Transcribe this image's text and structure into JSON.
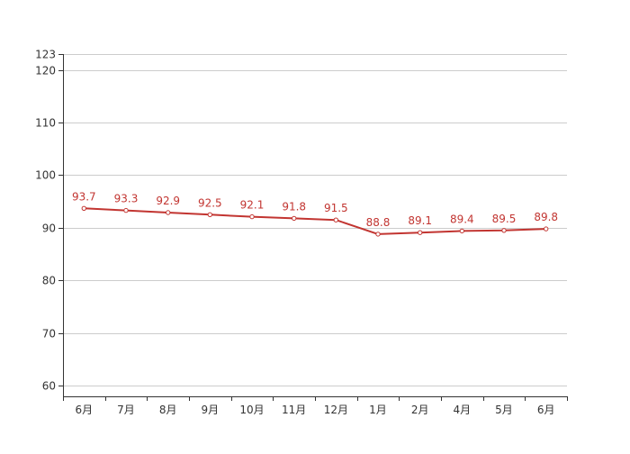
{
  "colors": {
    "series": "#c23531",
    "axis": "#333333",
    "grid": "#cccccc",
    "tick_text": "#333333"
  },
  "chart_data": {
    "type": "line",
    "categories": [
      "6月",
      "7月",
      "8月",
      "9月",
      "10月",
      "11月",
      "12月",
      "1月",
      "2月",
      "4月",
      "5月",
      "6月"
    ],
    "series": [
      {
        "values": [
          93.7,
          93.3,
          92.9,
          92.5,
          92.1,
          91.8,
          91.5,
          88.8,
          89.1,
          89.4,
          89.5,
          89.8
        ],
        "color": "#c23531",
        "show_data_labels": true
      }
    ],
    "y_ticks": [
      60,
      70,
      80,
      90,
      100,
      110,
      120,
      123
    ],
    "ylim": [
      58,
      123
    ],
    "grid": true,
    "legend": "none"
  }
}
